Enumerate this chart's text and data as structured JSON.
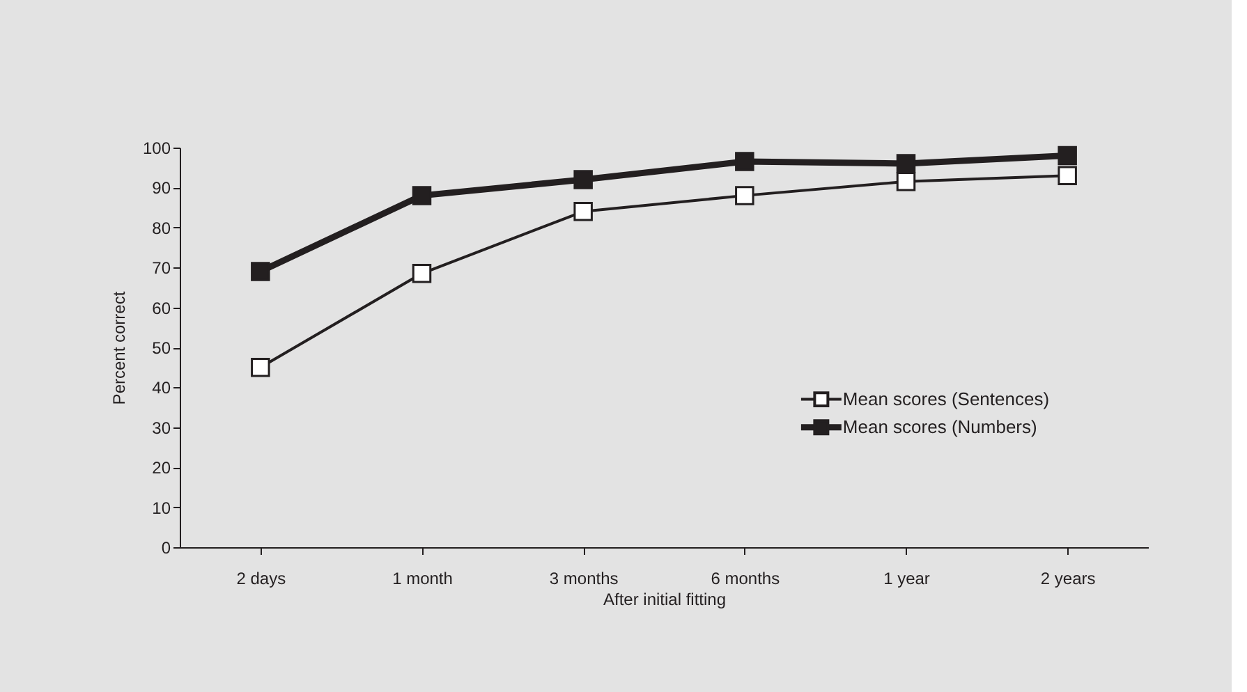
{
  "chart_data": {
    "type": "line",
    "xlabel": "After initial fitting",
    "ylabel": "Percent correct",
    "categories": [
      "2 days",
      "1 month",
      "3 months",
      "6 months",
      "1 year",
      "2 years"
    ],
    "series": [
      {
        "name": "Mean scores (Sentences)",
        "color": "#231f20",
        "values": [
          45,
          68.5,
          84,
          88,
          91.5,
          93
        ]
      },
      {
        "name": "Mean scores (Numbers)",
        "color": "#231f20",
        "values": [
          69,
          88,
          92,
          96.5,
          96,
          98
        ]
      }
    ],
    "ylim": [
      0,
      100
    ],
    "yticks": [
      0,
      10,
      20,
      30,
      40,
      50,
      60,
      70,
      80,
      90,
      100
    ],
    "grid": false,
    "legend": "right",
    "marker": "square",
    "line_style": "solid"
  }
}
